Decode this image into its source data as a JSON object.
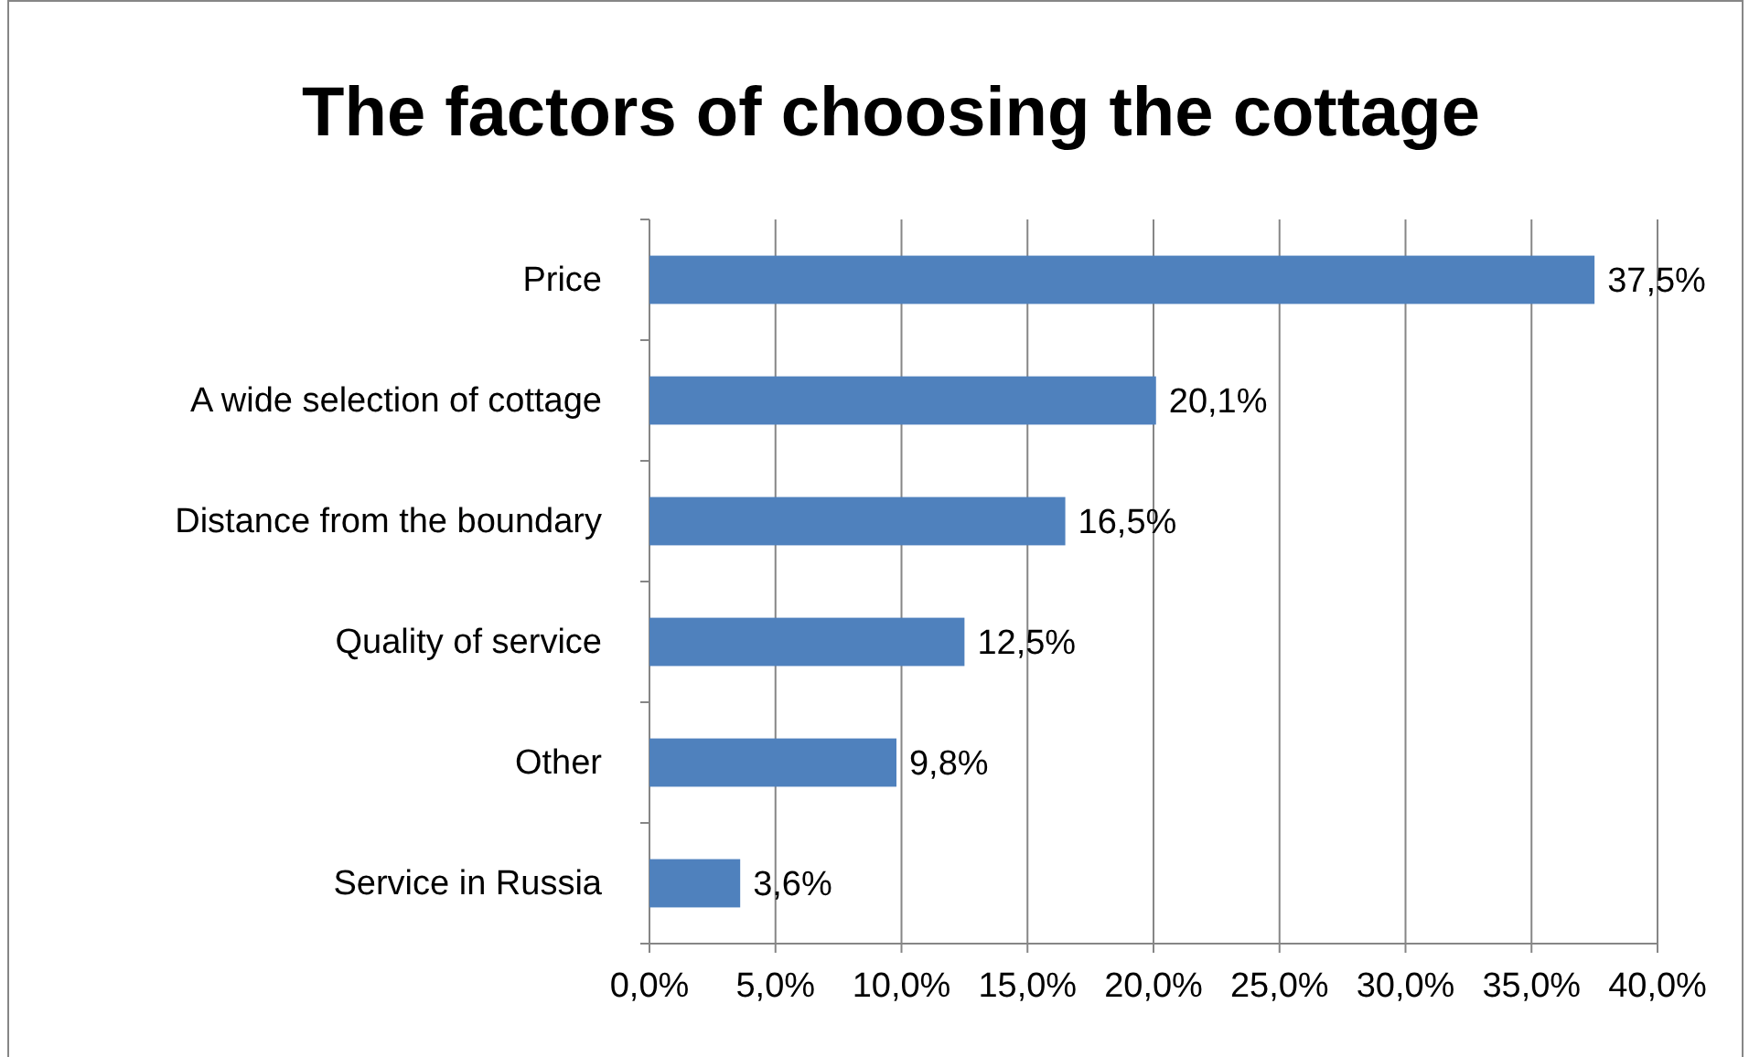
{
  "chart_data": {
    "type": "bar",
    "orientation": "horizontal",
    "title": "The factors of choosing the cottage",
    "categories": [
      "Price",
      "A wide selection of cottage",
      "Distance from the boundary",
      "Quality of service",
      "Other",
      "Service in Russia"
    ],
    "values": [
      37.5,
      20.1,
      16.5,
      12.5,
      9.8,
      3.6
    ],
    "value_labels": [
      "37,5%",
      "20,1%",
      "16,5%",
      "12,5%",
      "9,8%",
      "3,6%"
    ],
    "color": "#4f81bd",
    "xlim": [
      0,
      40
    ],
    "xticks": [
      {
        "value": 0,
        "label": "0,0%"
      },
      {
        "value": 5,
        "label": "5,0%"
      },
      {
        "value": 10,
        "label": "10,0%"
      },
      {
        "value": 15,
        "label": "15,0%"
      },
      {
        "value": 20,
        "label": "20,0%"
      },
      {
        "value": 25,
        "label": "25,0%"
      },
      {
        "value": 30,
        "label": "30,0%"
      },
      {
        "value": 35,
        "label": "35,0%"
      },
      {
        "value": 40,
        "label": "40,0%"
      }
    ],
    "grid": "x"
  }
}
